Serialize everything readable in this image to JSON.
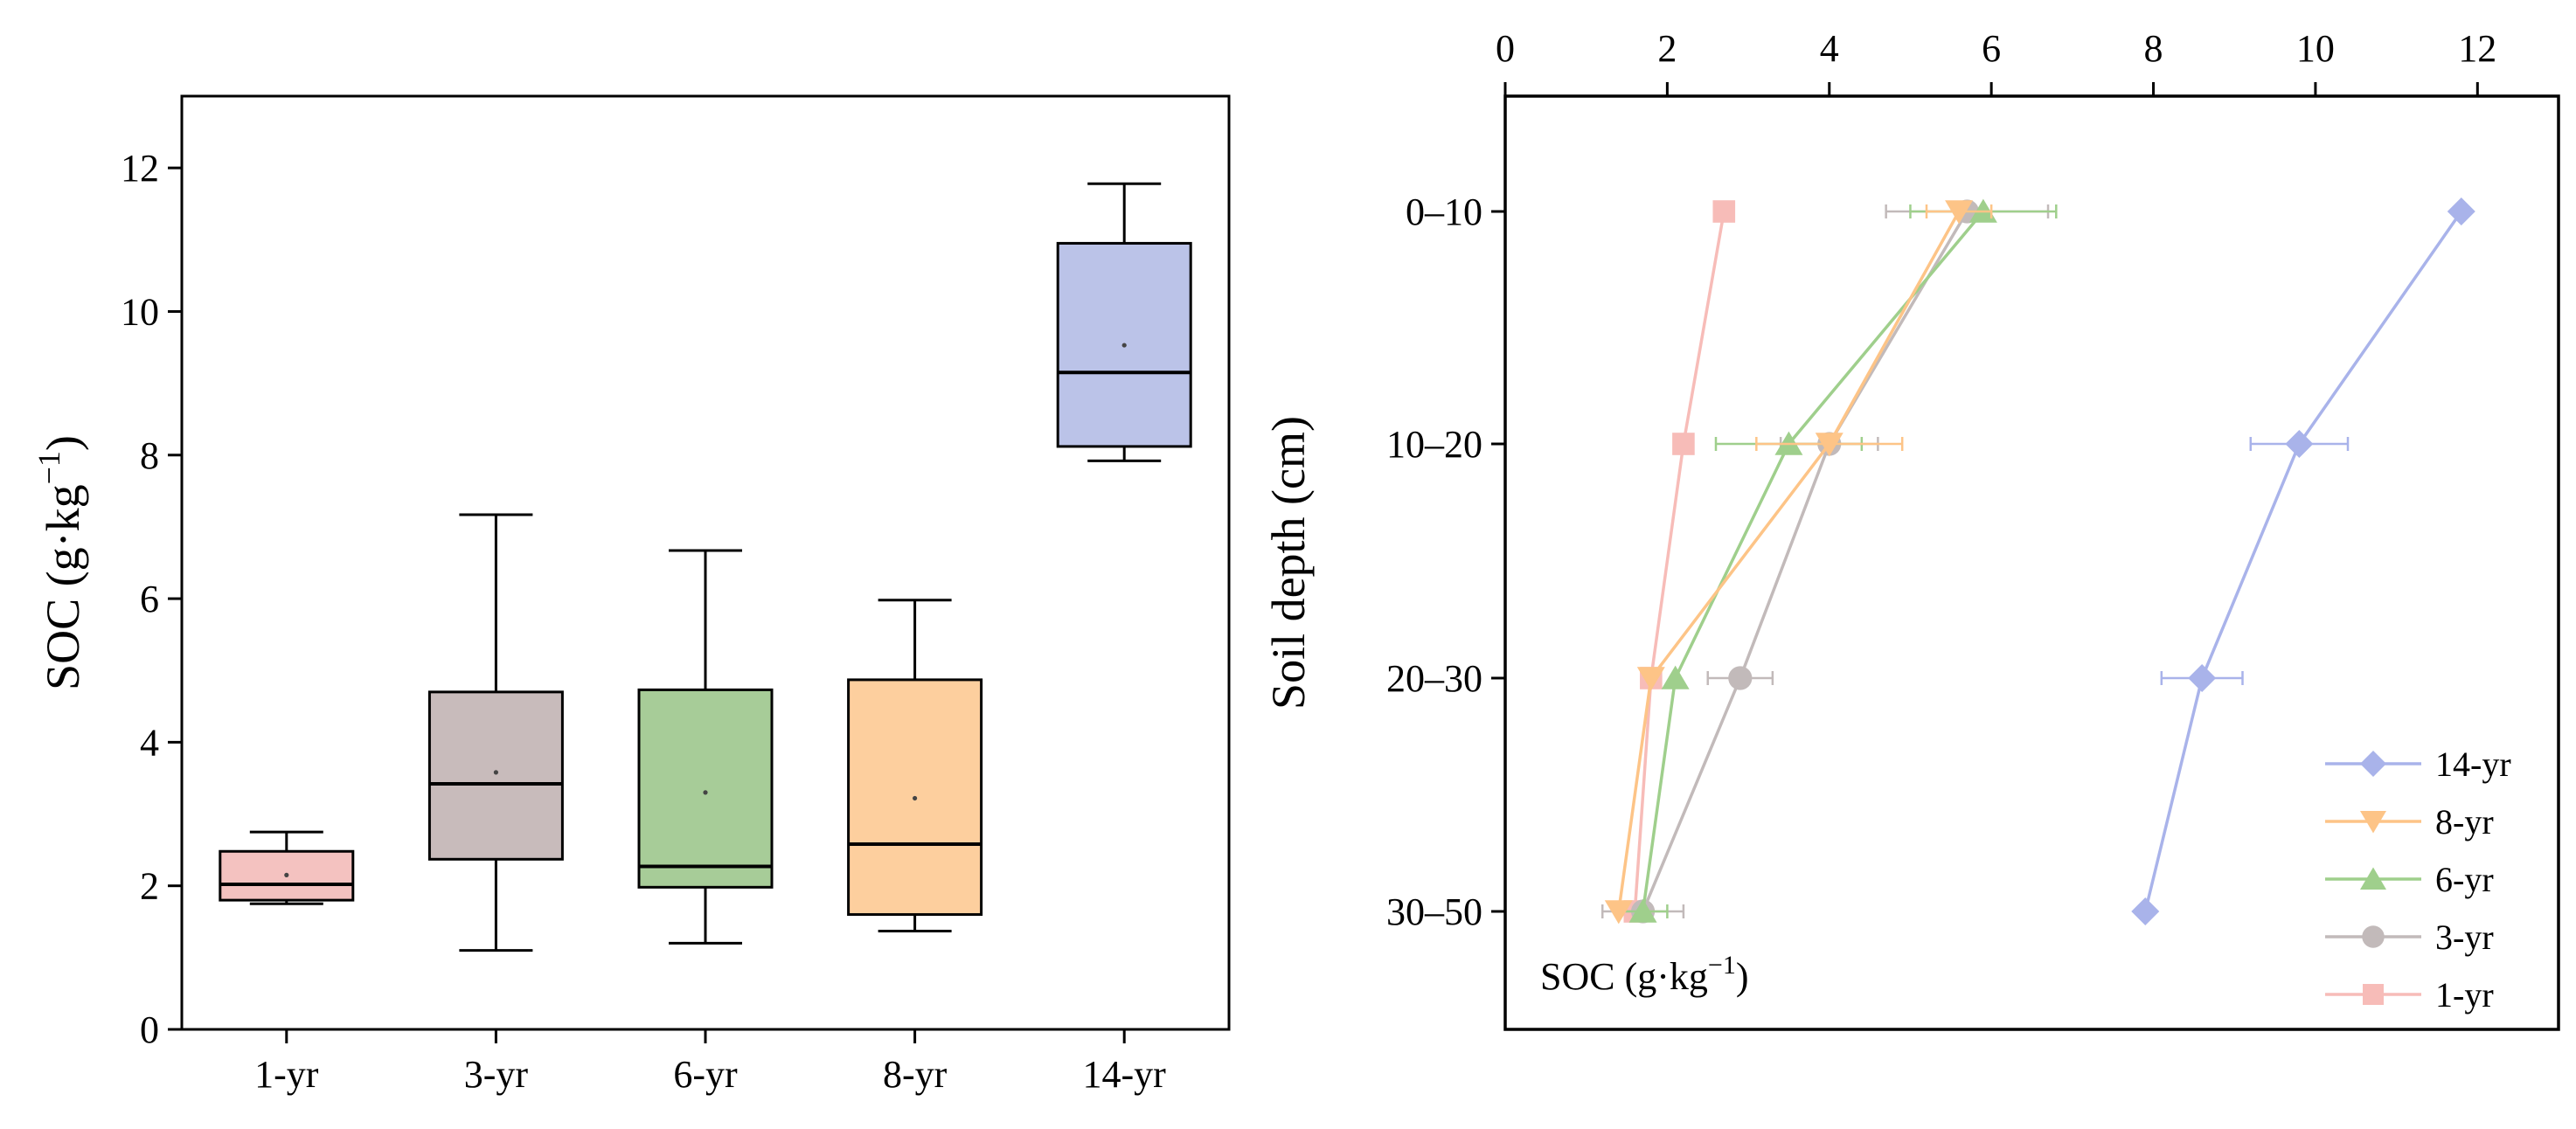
{
  "chart_data": [
    {
      "type": "boxplot",
      "ylabel_main": "SOC (g·kg",
      "ylabel_sup": "−1",
      "ylabel_end": ")",
      "ylim": [
        0,
        13
      ],
      "yticks": [
        0,
        2,
        4,
        6,
        8,
        10,
        12
      ],
      "categories": [
        "1-yr",
        "3-yr",
        "6-yr",
        "8-yr",
        "14-yr"
      ],
      "boxes": [
        {
          "name": "1-yr",
          "min": 1.75,
          "q1": 1.8,
          "median": 2.02,
          "q3": 2.48,
          "max": 2.75,
          "mean": 2.15,
          "color": "#f4c2c0"
        },
        {
          "name": "3-yr",
          "min": 1.1,
          "q1": 2.37,
          "median": 3.42,
          "q3": 4.7,
          "max": 7.17,
          "mean": 3.58,
          "color": "#c8bbbb"
        },
        {
          "name": "6-yr",
          "min": 1.2,
          "q1": 1.98,
          "median": 2.27,
          "q3": 4.73,
          "max": 6.67,
          "mean": 3.3,
          "color": "#a7cc98"
        },
        {
          "name": "8-yr",
          "min": 1.37,
          "q1": 1.6,
          "median": 2.58,
          "q3": 4.87,
          "max": 5.98,
          "mean": 3.22,
          "color": "#fdcf9e"
        },
        {
          "name": "14-yr",
          "min": 7.92,
          "q1": 8.12,
          "median": 9.15,
          "q3": 10.95,
          "max": 11.78,
          "mean": 9.53,
          "color": "#bbc3e8"
        }
      ]
    },
    {
      "type": "line",
      "ylabel": "Soil depth (cm)",
      "xlabel_main": "SOC (g·kg",
      "xlabel_sup": "−1",
      "xlabel_end": ")",
      "xlim": [
        0,
        13
      ],
      "xticks": [
        0,
        2,
        4,
        6,
        8,
        10,
        12
      ],
      "depths": [
        "0–10",
        "10–20",
        "20–30",
        "30–50"
      ],
      "series": [
        {
          "name": "14-yr",
          "marker": "diamond",
          "color": "#a9b3ea",
          "values": [
            11.8,
            9.8,
            8.6,
            7.9
          ],
          "errors": [
            0,
            0.6,
            0.5,
            0
          ]
        },
        {
          "name": "8-yr",
          "marker": "triangle-down",
          "color": "#fdc487",
          "values": [
            5.6,
            4.0,
            1.8,
            1.4
          ],
          "errors": [
            0.4,
            0.9,
            0,
            0
          ]
        },
        {
          "name": "6-yr",
          "marker": "triangle-up",
          "color": "#9fcf8c",
          "values": [
            5.9,
            3.5,
            2.1,
            1.7
          ],
          "errors": [
            0.9,
            0.9,
            0,
            0.3
          ]
        },
        {
          "name": "3-yr",
          "marker": "circle",
          "color": "#c2baba",
          "values": [
            5.7,
            4.0,
            2.9,
            1.7
          ],
          "errors": [
            1.0,
            0.6,
            0.4,
            0.5
          ]
        },
        {
          "name": "1-yr",
          "marker": "square",
          "color": "#f7bcb8",
          "values": [
            2.7,
            2.2,
            1.8,
            1.6
          ],
          "errors": [
            0,
            0,
            0,
            0
          ]
        }
      ]
    }
  ]
}
